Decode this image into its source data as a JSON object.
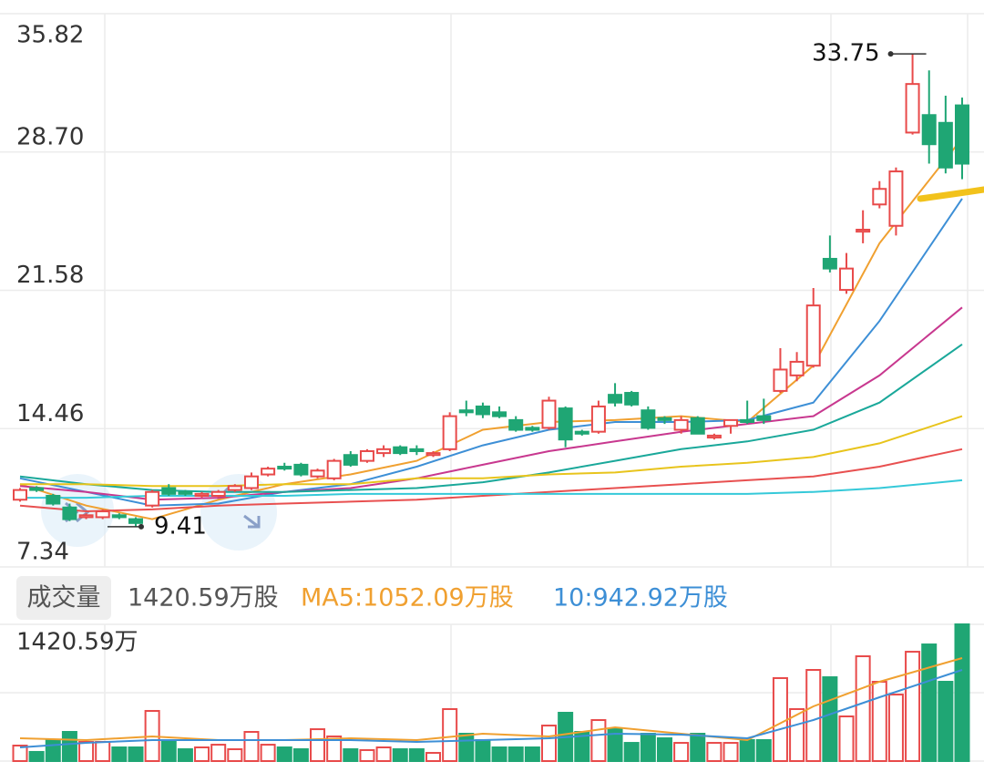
{
  "chart_data": {
    "type": "candlestick",
    "up_color": "#e84a4a",
    "down_color": "#1fa674",
    "grid": true,
    "ylim": [
      7.34,
      35.82
    ],
    "yticks": [
      7.34,
      14.46,
      21.58,
      {
        "value": 28.7,
        "label": "28.70"
      },
      35.82
    ],
    "open": [
      10.8,
      11.4,
      11.0,
      10.4,
      9.9,
      9.9,
      10.0,
      9.8,
      10.5,
      11.4,
      11.2,
      11.0,
      11.0,
      11.3,
      11.4,
      12.1,
      12.5,
      12.6,
      12.0,
      11.9,
      13.1,
      12.8,
      13.2,
      13.5,
      13.4,
      13.1,
      13.4,
      15.4,
      15.6,
      15.3,
      14.9,
      14.5,
      14.5,
      15.5,
      14.3,
      14.3,
      16.2,
      16.3,
      15.4,
      15.0,
      14.4,
      15.0,
      14.0,
      14.6,
      14.9,
      15.1,
      16.4,
      17.2,
      17.7,
      23.2,
      21.6,
      24.6,
      26.0,
      24.9,
      29.7,
      30.6,
      30.2,
      31.1
    ],
    "high": [
      11.4,
      11.5,
      11.1,
      10.6,
      10.1,
      10.3,
      10.1,
      9.9,
      11.3,
      11.6,
      11.3,
      11.2,
      11.3,
      11.6,
      12.2,
      12.5,
      12.7,
      12.7,
      12.4,
      12.9,
      13.3,
      13.4,
      13.6,
      13.6,
      13.6,
      13.3,
      15.3,
      15.9,
      15.8,
      15.6,
      15.1,
      14.6,
      16.1,
      15.6,
      14.4,
      15.9,
      16.8,
      16.4,
      15.6,
      15.1,
      15.1,
      15.1,
      14.2,
      14.9,
      15.9,
      16.0,
      18.6,
      18.4,
      21.7,
      24.4,
      23.5,
      25.7,
      27.2,
      27.9,
      33.75,
      32.9,
      31.6,
      31.5
    ],
    "low": [
      10.7,
      11.2,
      10.5,
      9.7,
      9.8,
      9.8,
      9.8,
      9.41,
      10.4,
      11.0,
      11.0,
      10.9,
      10.9,
      11.2,
      11.3,
      12.0,
      12.3,
      12.0,
      11.9,
      11.8,
      12.5,
      12.7,
      13.0,
      13.1,
      13.1,
      13.0,
      13.3,
      15.1,
      15.0,
      15.0,
      14.3,
      14.3,
      14.4,
      13.5,
      14.1,
      14.2,
      15.6,
      15.6,
      14.4,
      14.7,
      14.2,
      14.2,
      13.9,
      14.2,
      14.7,
      14.7,
      16.3,
      16.9,
      17.6,
      22.5,
      21.4,
      24.0,
      25.8,
      24.4,
      29.6,
      28.1,
      27.6,
      27.3
    ],
    "close": [
      11.3,
      11.3,
      10.6,
      9.8,
      10.0,
      10.2,
      9.9,
      9.6,
      11.2,
      11.1,
      11.1,
      11.1,
      11.2,
      11.5,
      12.0,
      12.4,
      12.4,
      12.1,
      12.3,
      12.8,
      12.6,
      13.3,
      13.4,
      13.2,
      13.3,
      13.2,
      15.1,
      15.3,
      15.2,
      15.1,
      14.4,
      14.4,
      15.9,
      13.9,
      14.2,
      15.6,
      15.8,
      15.7,
      14.5,
      14.9,
      14.9,
      14.2,
      14.1,
      14.9,
      14.8,
      14.9,
      17.5,
      17.9,
      20.8,
      22.7,
      22.7,
      24.7,
      26.8,
      27.7,
      32.2,
      29.1,
      27.9,
      28.1
    ],
    "ma_x": [
      0,
      4,
      8,
      12,
      16,
      20,
      24,
      28,
      32,
      36,
      40,
      44,
      48,
      52,
      57
    ],
    "ma_lines": [
      {
        "color": "#f0a030",
        "values": [
          11.6,
          10.5,
          9.8,
          10.8,
          11.6,
          12.1,
          12.8,
          14.4,
          14.8,
          14.9,
          15.1,
          14.8,
          17.7,
          24.0,
          29.4
        ]
      },
      {
        "color": "#3d8fd6",
        "values": [
          11.9,
          11.2,
          10.5,
          10.6,
          11.2,
          11.6,
          12.5,
          13.6,
          14.4,
          14.8,
          14.8,
          14.9,
          15.8,
          20.0,
          26.3
        ]
      },
      {
        "color": "#c8388f",
        "values": [
          11.5,
          11.2,
          10.8,
          10.9,
          11.2,
          11.4,
          11.9,
          12.6,
          13.3,
          13.8,
          14.3,
          14.7,
          15.1,
          17.2,
          20.7
        ]
      },
      {
        "color": "#1aa89a",
        "values": [
          12.0,
          11.6,
          11.3,
          11.2,
          11.2,
          11.3,
          11.4,
          11.7,
          12.2,
          12.8,
          13.4,
          13.8,
          14.4,
          15.8,
          18.8
        ]
      },
      {
        "color": "#e8c41c",
        "values": [
          11.6,
          11.6,
          11.5,
          11.5,
          11.6,
          11.6,
          11.9,
          11.9,
          12.1,
          12.2,
          12.5,
          12.7,
          13.0,
          13.7,
          15.1
        ]
      },
      {
        "color": "#e85050",
        "values": [
          10.5,
          10.2,
          10.3,
          10.5,
          10.6,
          10.7,
          10.8,
          11.0,
          11.2,
          11.4,
          11.6,
          11.8,
          12.0,
          12.5,
          13.4
        ]
      },
      {
        "color": "#35c9d9",
        "values": [
          10.9,
          10.9,
          11.0,
          11.0,
          11.0,
          11.1,
          11.1,
          11.1,
          11.1,
          11.1,
          11.1,
          11.1,
          11.2,
          11.4,
          11.8
        ]
      }
    ],
    "legend": {
      "button": "成交量",
      "current": "1420.59万股",
      "ma5": "MA5:1052.09万股",
      "ma10": "10:942.92万股",
      "ma5_color": "#f0a030",
      "ma10_color": "#3d8fd6"
    },
    "volume": {
      "ylim": [
        0,
        1420.59
      ],
      "yticks": [
        {
          "value": 1420.59,
          "label": "1420.59万"
        }
      ],
      "values": [
        161,
        95,
        218,
        303,
        199,
        199,
        142,
        142,
        521,
        199,
        123,
        142,
        170,
        123,
        303,
        170,
        142,
        123,
        331,
        256,
        123,
        114,
        142,
        123,
        123,
        85,
        540,
        284,
        218,
        142,
        142,
        142,
        369,
        502,
        303,
        426,
        331,
        189,
        284,
        237,
        189,
        284,
        189,
        189,
        218,
        218,
        862,
        540,
        947,
        871,
        464,
        1089,
        824,
        691,
        1136,
        1212,
        824,
        1420.59
      ],
      "ma_lines": [
        {
          "color": "#f0a030",
          "values": [
            237,
            218,
            256,
            218,
            218,
            237,
            218,
            284,
            256,
            350,
            284,
            218,
            568,
            824,
            1070
          ]
        },
        {
          "color": "#3d8fd6",
          "values": [
            142,
            189,
            218,
            218,
            218,
            218,
            199,
            218,
            237,
            284,
            275,
            237,
            426,
            663,
            947
          ]
        }
      ]
    }
  }
}
